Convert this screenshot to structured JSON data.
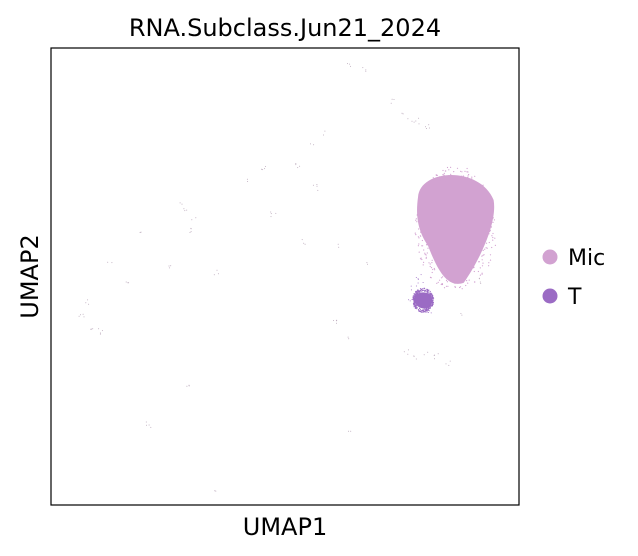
{
  "chart_data": {
    "type": "scatter",
    "title": "RNA.Subclass.Jun21_2024",
    "xlabel": "UMAP1",
    "ylabel": "UMAP2",
    "xlim": [
      0,
      100
    ],
    "ylim": [
      0,
      100
    ],
    "grid": false,
    "legend_position": "right",
    "ticks_visible": false,
    "series": [
      {
        "name": "Mic",
        "color": "#d2a2d1",
        "clusters": [
          {
            "shape": "blob",
            "cx": 86.5,
            "cy": 60.5,
            "rx": 8.5,
            "ry": 12.5
          }
        ],
        "sparse_points": [
          [
            29.0,
            64.6
          ],
          [
            30.5,
            62.5
          ],
          [
            29.5,
            60.0
          ],
          [
            27.5,
            66.0
          ],
          [
            41.5,
            71.0
          ],
          [
            56.5,
            69.5
          ],
          [
            52.5,
            75.0
          ],
          [
            53.0,
            74.0
          ],
          [
            73.0,
            88.5
          ],
          [
            75.0,
            86.0
          ],
          [
            76.5,
            84.5
          ],
          [
            78.0,
            84.0
          ],
          [
            80.5,
            83.0
          ],
          [
            67.0,
            95.5
          ],
          [
            63.5,
            96.5
          ],
          [
            55.5,
            79.0
          ],
          [
            58.0,
            81.5
          ],
          [
            45.5,
            73.5
          ],
          [
            8.0,
            44.5
          ],
          [
            6.5,
            41.5
          ],
          [
            9.0,
            39.0
          ],
          [
            10.5,
            38.0
          ],
          [
            19.5,
            60.0
          ],
          [
            25.0,
            52.0
          ],
          [
            35.5,
            51.0
          ],
          [
            29.0,
            26.5
          ],
          [
            21.0,
            17.5
          ],
          [
            35.5,
            3.5
          ],
          [
            64.0,
            16.0
          ],
          [
            61.0,
            40.0
          ],
          [
            63.5,
            36.5
          ],
          [
            80.0,
            33.0
          ],
          [
            77.5,
            32.0
          ],
          [
            82.5,
            32.5
          ],
          [
            76.0,
            33.5
          ],
          [
            85.0,
            31.0
          ],
          [
            88.0,
            42.0
          ],
          [
            91.5,
            49.0
          ],
          [
            68.0,
            53.0
          ],
          [
            62.0,
            56.5
          ],
          [
            54.0,
            57.5
          ],
          [
            47.5,
            63.5
          ],
          [
            12.5,
            53.0
          ],
          [
            16.0,
            48.5
          ]
        ]
      },
      {
        "name": "T",
        "color": "#9b6bc4",
        "clusters": [
          {
            "shape": "blob",
            "cx": 79.5,
            "cy": 44.8,
            "rx": 2.0,
            "ry": 2.3
          }
        ],
        "sparse_points": [
          [
            78.5,
            50.0
          ],
          [
            77.5,
            47.5
          ],
          [
            79.0,
            49.0
          ],
          [
            76.5,
            44.5
          ],
          [
            81.0,
            42.5
          ]
        ]
      }
    ]
  }
}
